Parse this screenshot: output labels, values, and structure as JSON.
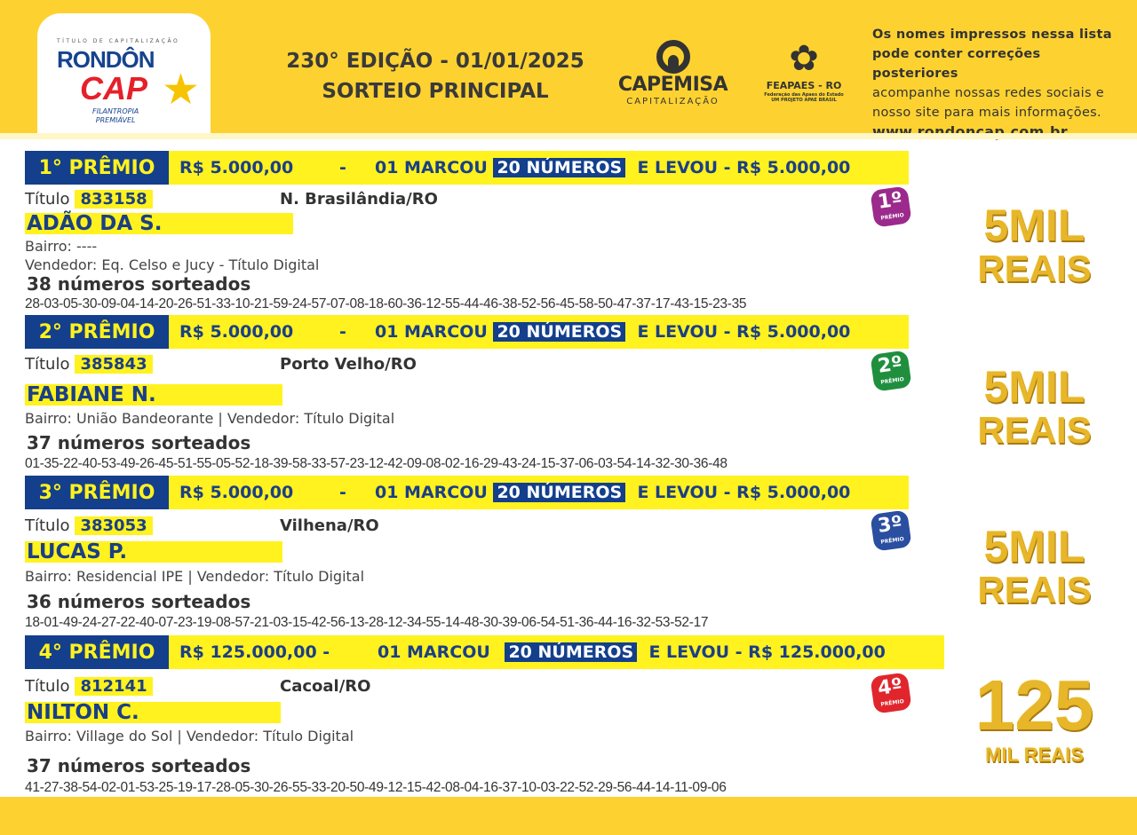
{
  "header": {
    "logo": {
      "top": "TÍTULO DE CAPITALIZAÇÃO",
      "name1": "RONDÔN",
      "name2": "CAP",
      "sub1": "FILANTROPIA",
      "sub2": "PREMIÁVEL"
    },
    "edition_line1": "230° EDIÇÃO - 01/01/2025",
    "edition_line2": "SORTEIO PRINCIPAL",
    "capemisa": {
      "name": "CAPEMISA",
      "sub": "CAPITALIZAÇÃO"
    },
    "feapaes": {
      "name": "FEAPAES - RO",
      "sub1": "Federação das Apaes do Estado",
      "sub2": "UM PROJETO APAE BRASIL"
    },
    "notice_line1": "Os nomes impressos nessa lista",
    "notice_line2": "pode conter correções posteriores",
    "notice_line3": "acompanhe nossas redes sociais e",
    "notice_line4": "nosso site para mais informações.",
    "url": "www.rondoncap.com.br"
  },
  "colors": {
    "header_yellow": "#fdd230",
    "banner_blue": "#133f8c",
    "highlight_yellow": "#fff21e"
  },
  "prizes": [
    {
      "label": "1° PRÊMIO",
      "amount": "R$ 5.000,00",
      "dash": "-",
      "marked_prefix": "01 MARCOU",
      "marked": "20 NÚMEROS",
      "won": "E LEVOU - R$ 5.000,00",
      "title_label": "Título",
      "title_number": "833158",
      "city": "N. Brasilândia/RO",
      "name": "ADÃO DA S.",
      "bairro": "Bairro: ----",
      "vendedor": "Vendedor: Eq. Celso e Jucy - Título Digital",
      "count": "38 números sorteados",
      "numbers": "28-03-05-30-09-04-14-20-26-51-33-10-21-59-24-57-07-08-18-60-36-12-55-44-46-38-52-56-45-58-50-47-37-17-43-15-23-35",
      "badge": "1º",
      "badge_sub": "PRÊMIO",
      "badge_color": "#9b2a8c",
      "prize_art_1": "5MIL",
      "prize_art_2": "REAIS"
    },
    {
      "label": "2° PRÊMIO",
      "amount": "R$ 5.000,00",
      "dash": "-",
      "marked_prefix": "01 MARCOU",
      "marked": "20 NÚMEROS",
      "won": "E LEVOU - R$ 5.000,00",
      "title_label": "Título",
      "title_number": "385843",
      "city": "Porto Velho/RO",
      "name": "FABIANE N.",
      "bairro": "Bairro: União Bandeorante | Vendedor: Título Digital",
      "count": "37 números sorteados",
      "numbers": "01-35-22-40-53-49-26-45-51-55-05-52-18-39-58-33-57-23-12-42-09-08-02-16-29-43-24-15-37-06-03-54-14-32-30-36-48",
      "badge": "2º",
      "badge_sub": "PRÊMIO",
      "badge_color": "#1f8f3e",
      "prize_art_1": "5MIL",
      "prize_art_2": "REAIS"
    },
    {
      "label": "3° PRÊMIO",
      "amount": "R$ 5.000,00",
      "dash": "-",
      "marked_prefix": "01 MARCOU",
      "marked": "20 NÚMEROS",
      "won": "E LEVOU - R$ 5.000,00",
      "title_label": "Título",
      "title_number": "383053",
      "city": "Vilhena/RO",
      "name": "LUCAS P.",
      "bairro": "Bairro: Residencial IPE | Vendedor: Título Digital",
      "count": "36 números sorteados",
      "numbers": "18-01-49-24-27-22-40-07-23-19-08-57-21-03-15-42-56-13-28-12-34-55-14-48-30-39-06-54-51-36-44-16-32-53-52-17",
      "badge": "3º",
      "badge_sub": "PRÊMIO",
      "badge_color": "#2a4ea0",
      "prize_art_1": "5MIL",
      "prize_art_2": "REAIS"
    },
    {
      "label": "4° PRÊMIO",
      "amount": "R$ 125.000,00 -",
      "dash": "",
      "marked_prefix": "01 MARCOU",
      "marked": "20 NÚMEROS",
      "won": "E LEVOU - R$ 125.000,00",
      "title_label": "Título",
      "title_number": "812141",
      "city": "Cacoal/RO",
      "name": "NILTON C.",
      "bairro": "Bairro: Village do Sol | Vendedor: Título Digital",
      "count": "37 números sorteados",
      "numbers": "41-27-38-54-02-01-53-25-19-17-28-05-30-26-55-33-20-50-49-12-15-42-08-04-16-37-10-03-22-52-29-56-44-14-11-09-06",
      "badge": "4º",
      "badge_sub": "PRÊMIO",
      "badge_color": "#e0262c",
      "prize_art_1": "125",
      "prize_art_2": "MIL REAIS"
    }
  ]
}
